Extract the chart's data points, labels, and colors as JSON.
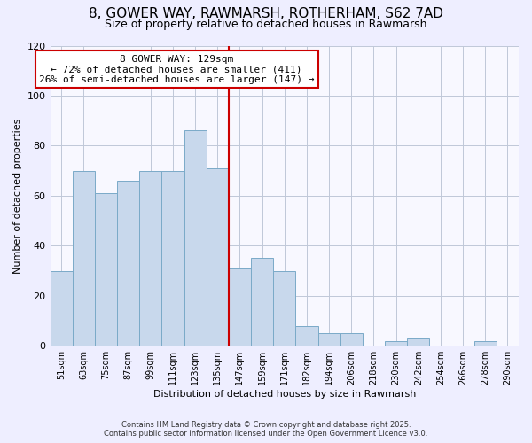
{
  "title": "8, GOWER WAY, RAWMARSH, ROTHERHAM, S62 7AD",
  "subtitle": "Size of property relative to detached houses in Rawmarsh",
  "xlabel": "Distribution of detached houses by size in Rawmarsh",
  "ylabel": "Number of detached properties",
  "bar_labels": [
    "51sqm",
    "63sqm",
    "75sqm",
    "87sqm",
    "99sqm",
    "111sqm",
    "123sqm",
    "135sqm",
    "147sqm",
    "159sqm",
    "171sqm",
    "182sqm",
    "194sqm",
    "206sqm",
    "218sqm",
    "230sqm",
    "242sqm",
    "254sqm",
    "266sqm",
    "278sqm",
    "290sqm"
  ],
  "bar_values": [
    30,
    70,
    61,
    66,
    70,
    70,
    86,
    71,
    31,
    35,
    30,
    8,
    5,
    5,
    0,
    2,
    3,
    0,
    0,
    2,
    0
  ],
  "bar_color": "#c8d8ec",
  "bar_edge_color": "#7aaac8",
  "vline_x_index": 7,
  "vline_color": "#cc0000",
  "annotation_title": "8 GOWER WAY: 129sqm",
  "annotation_line1": "← 72% of detached houses are smaller (411)",
  "annotation_line2": "26% of semi-detached houses are larger (147) →",
  "annotation_box_color": "#ffffff",
  "annotation_box_edge": "#cc0000",
  "ylim": [
    0,
    120
  ],
  "yticks": [
    0,
    20,
    40,
    60,
    80,
    100,
    120
  ],
  "footer1": "Contains HM Land Registry data © Crown copyright and database right 2025.",
  "footer2": "Contains public sector information licensed under the Open Government Licence v3.0.",
  "bg_color": "#eeeeff",
  "plot_bg_color": "#f8f8ff",
  "grid_color": "#c0c8d8",
  "title_fontsize": 11,
  "subtitle_fontsize": 9,
  "axis_fontsize": 8,
  "tick_fontsize": 7
}
